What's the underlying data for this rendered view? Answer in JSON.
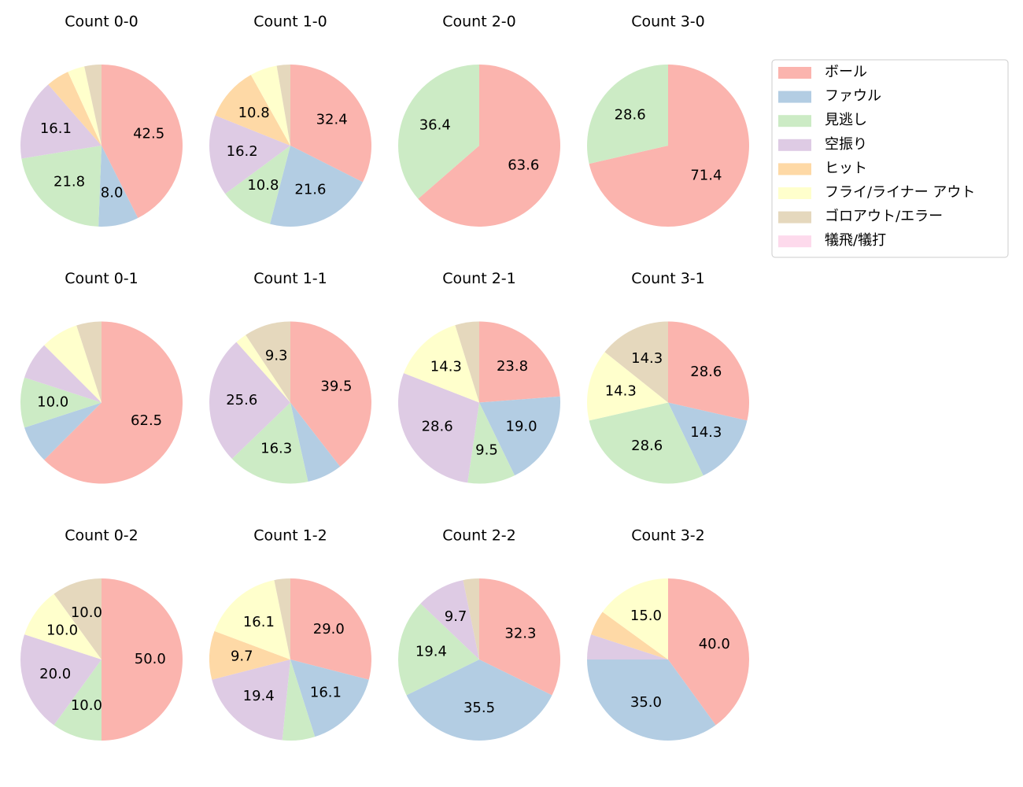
{
  "legend": {
    "labels": [
      "ボール",
      "ファウル",
      "見逃し",
      "空振り",
      "ヒット",
      "フライ/ライナー アウト",
      "ゴロアウト/エラー",
      "犠飛/犠打"
    ],
    "colors": [
      "#fbb4ae",
      "#b3cde3",
      "#ccebc5",
      "#decbe4",
      "#fed9a6",
      "#ffffcc",
      "#e5d8bd",
      "#fddaec"
    ]
  },
  "chart_data": [
    {
      "type": "pie",
      "title": "Count 0-0",
      "values": [
        42.5,
        8.0,
        21.8,
        16.1,
        4.6,
        3.4,
        3.4,
        0
      ],
      "value_labels": [
        "42.5",
        "8.0",
        "21.8",
        "16.1",
        null,
        null,
        null,
        null
      ]
    },
    {
      "type": "pie",
      "title": "Count 1-0",
      "values": [
        32.4,
        21.6,
        10.8,
        16.2,
        10.8,
        5.4,
        2.7,
        0
      ],
      "value_labels": [
        "32.4",
        "21.6",
        "10.8",
        "16.2",
        "10.8",
        null,
        null,
        null
      ]
    },
    {
      "type": "pie",
      "title": "Count 2-0",
      "values": [
        63.6,
        0,
        36.4,
        0,
        0,
        0,
        0,
        0
      ],
      "value_labels": [
        "63.6",
        null,
        "36.4",
        null,
        null,
        null,
        null,
        null
      ]
    },
    {
      "type": "pie",
      "title": "Count 3-0",
      "values": [
        71.4,
        0,
        28.6,
        0,
        0,
        0,
        0,
        0
      ],
      "value_labels": [
        "71.4",
        null,
        "28.6",
        null,
        null,
        null,
        null,
        null
      ]
    },
    {
      "type": "pie",
      "title": "Count 0-1",
      "values": [
        62.5,
        7.5,
        10.0,
        7.5,
        0,
        7.5,
        5.0,
        0
      ],
      "value_labels": [
        "62.5",
        null,
        "10.0",
        null,
        null,
        null,
        null,
        null
      ]
    },
    {
      "type": "pie",
      "title": "Count 1-1",
      "values": [
        39.5,
        7.0,
        16.3,
        25.6,
        0,
        2.3,
        9.3,
        0
      ],
      "value_labels": [
        "39.5",
        null,
        "16.3",
        "25.6",
        null,
        null,
        "9.3",
        null
      ]
    },
    {
      "type": "pie",
      "title": "Count 2-1",
      "values": [
        23.8,
        19.0,
        9.5,
        28.6,
        0,
        14.3,
        4.8,
        0
      ],
      "value_labels": [
        "23.8",
        "19.0",
        "9.5",
        "28.6",
        null,
        "14.3",
        null,
        null
      ]
    },
    {
      "type": "pie",
      "title": "Count 3-1",
      "values": [
        28.6,
        14.3,
        28.6,
        0,
        0,
        14.3,
        14.3,
        0
      ],
      "value_labels": [
        "28.6",
        "14.3",
        "28.6",
        null,
        null,
        "14.3",
        "14.3",
        null
      ]
    },
    {
      "type": "pie",
      "title": "Count 0-2",
      "values": [
        50.0,
        0,
        10.0,
        20.0,
        0,
        10.0,
        10.0,
        0
      ],
      "value_labels": [
        "50.0",
        null,
        "10.0",
        "20.0",
        null,
        "10.0",
        "10.0",
        null
      ]
    },
    {
      "type": "pie",
      "title": "Count 1-2",
      "values": [
        29.0,
        16.1,
        6.5,
        19.4,
        9.7,
        16.1,
        3.2,
        0
      ],
      "value_labels": [
        "29.0",
        "16.1",
        null,
        "19.4",
        "9.7",
        "16.1",
        null,
        null
      ]
    },
    {
      "type": "pie",
      "title": "Count 2-2",
      "values": [
        32.3,
        35.5,
        19.4,
        9.7,
        0,
        0,
        3.2,
        0
      ],
      "value_labels": [
        "32.3",
        "35.5",
        "19.4",
        "9.7",
        null,
        null,
        null,
        null
      ]
    },
    {
      "type": "pie",
      "title": "Count 3-2",
      "values": [
        40.0,
        35.0,
        0,
        5.0,
        5.0,
        15.0,
        0,
        0
      ],
      "value_labels": [
        "40.0",
        "35.0",
        null,
        null,
        null,
        "15.0",
        null,
        null
      ]
    }
  ]
}
